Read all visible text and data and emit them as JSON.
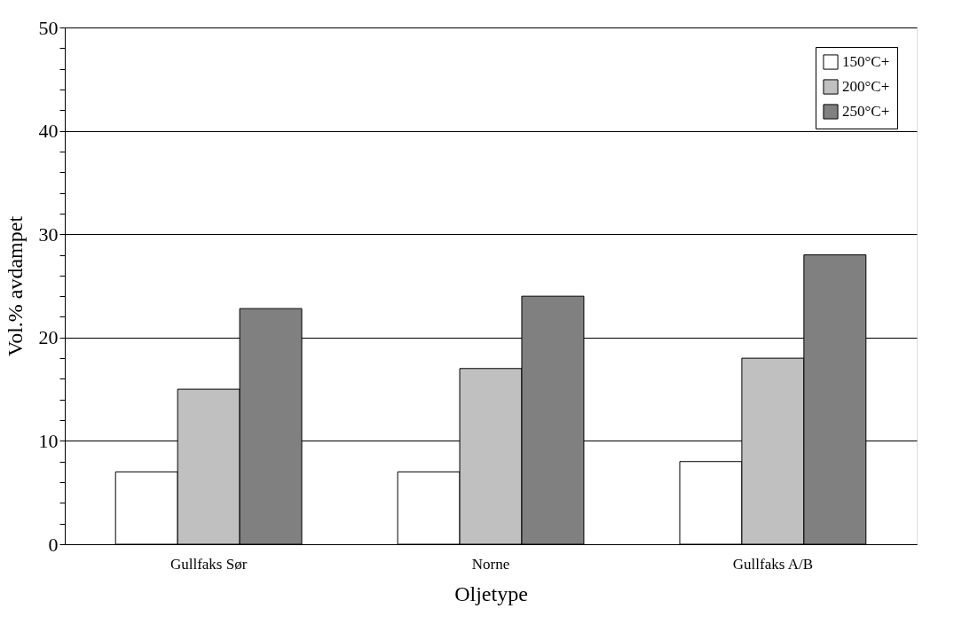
{
  "chart_data": {
    "type": "bar",
    "xlabel": "Oljetype",
    "ylabel": "Vol.% avdampet",
    "categories": [
      "Gullfaks Sør",
      "Norne",
      "Gullfaks A/B"
    ],
    "series": [
      {
        "name": "150°C+",
        "color": "#ffffff",
        "values": [
          7,
          7,
          8
        ]
      },
      {
        "name": "200°C+",
        "color": "#c0c0c0",
        "values": [
          15,
          17,
          18
        ]
      },
      {
        "name": "250°C+",
        "color": "#808080",
        "values": [
          22.8,
          24,
          28
        ]
      }
    ],
    "ylim": [
      0,
      50
    ],
    "yticks": [
      0,
      {
        "value": 2,
        "label": null
      },
      {
        "value": 4,
        "label": null
      },
      {
        "value": 6,
        "label": null
      },
      {
        "value": 8,
        "label": null
      },
      10,
      {
        "value": 12,
        "label": null
      },
      {
        "value": 14,
        "label": null
      },
      {
        "value": 16,
        "label": null
      },
      {
        "value": 18,
        "label": null
      },
      20,
      {
        "value": 22,
        "label": null
      },
      {
        "value": 24,
        "label": null
      },
      {
        "value": 26,
        "label": null
      },
      {
        "value": 28,
        "label": null
      },
      30,
      {
        "value": 32,
        "label": null
      },
      {
        "value": 34,
        "label": null
      },
      {
        "value": 36,
        "label": null
      },
      {
        "value": 38,
        "label": null
      },
      40,
      {
        "value": 42,
        "label": null
      },
      {
        "value": 44,
        "label": null
      },
      {
        "value": 46,
        "label": null
      },
      {
        "value": 48,
        "label": null
      },
      50
    ],
    "grid": "y",
    "legend": "top right"
  }
}
